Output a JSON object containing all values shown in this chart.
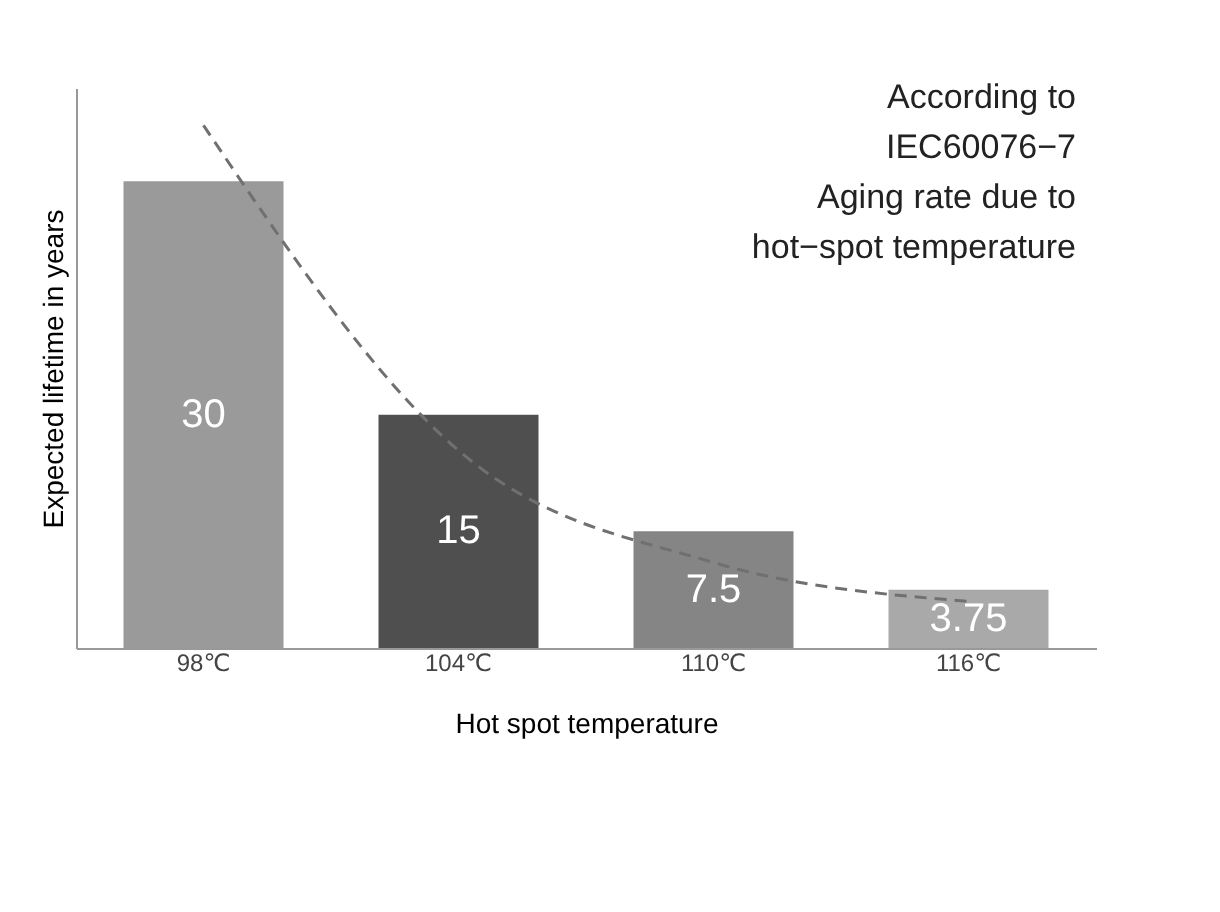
{
  "chart_data": {
    "type": "bar",
    "categories": [
      "98℃",
      "104℃",
      "110℃",
      "116℃"
    ],
    "values": [
      30,
      15,
      7.5,
      3.75
    ],
    "colors": [
      "#9a9a9a",
      "#4f4f4f",
      "#858585",
      "#a9a9a9"
    ],
    "series": [
      {
        "type": "line",
        "color": "#707070",
        "values": [
          33.6,
          12.7,
          5.5,
          3.0
        ]
      }
    ],
    "line_style": "dashed",
    "value_labels": [
      "30",
      "15",
      "7.5",
      "3.75"
    ],
    "ylim": [
      0,
      36
    ],
    "xlabel": "Hot spot temperature",
    "ylabel": "Expected lifetime in years",
    "annotations": [
      "According to",
      "IEC60076−7",
      "Aging rate due to",
      "hot−spot temperature"
    ]
  }
}
